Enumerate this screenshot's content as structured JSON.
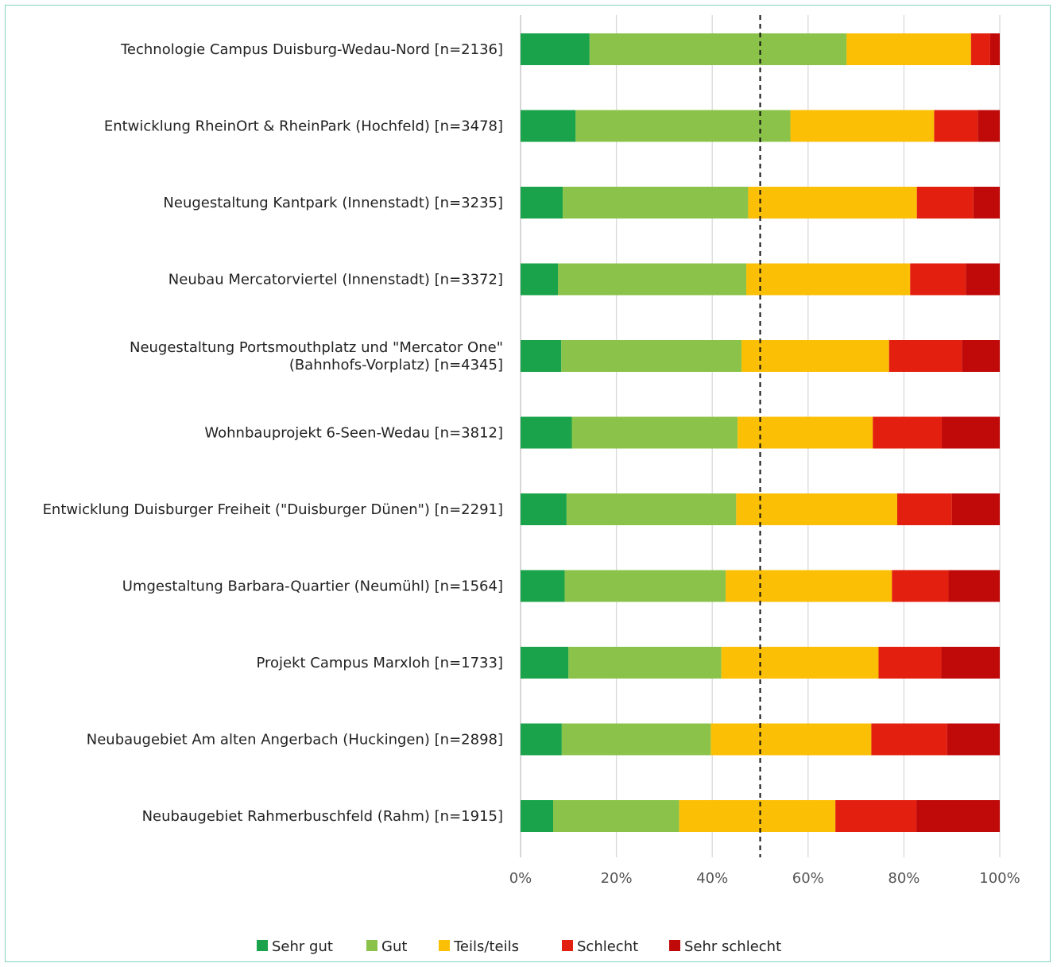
{
  "chart_data": {
    "type": "bar",
    "orientation": "horizontal",
    "stacked": "100%",
    "categories": [
      [
        "Technologie Campus Duisburg-Wedau-Nord [n=2136]"
      ],
      [
        "Entwicklung RheinOrt & RheinPark (Hochfeld) [n=3478]"
      ],
      [
        "Neugestaltung Kantpark (Innenstadt) [n=3235]"
      ],
      [
        "Neubau Mercatorviertel (Innenstadt) [n=3372]"
      ],
      [
        "Neugestaltung Portsmouthplatz und \"Mercator One\"",
        "(Bahnhofs-Vorplatz) [n=4345]"
      ],
      [
        "Wohnbauprojekt 6-Seen-Wedau [n=3812]"
      ],
      [
        "Entwicklung Duisburger Freiheit (\"Duisburger Dünen\") [n=2291]"
      ],
      [
        "Umgestaltung Barbara-Quartier (Neumühl) [n=1564]"
      ],
      [
        "Projekt Campus Marxloh [n=1733]"
      ],
      [
        "Neubaugebiet Am alten Angerbach (Huckingen) [n=2898]"
      ],
      [
        "Neubaugebiet Rahmerbuschfeld (Rahm) [n=1915]"
      ]
    ],
    "series": [
      {
        "name": "Sehr gut",
        "color": "#1aa34a",
        "values": [
          14.4,
          11.5,
          8.8,
          7.8,
          8.5,
          10.7,
          9.6,
          9.2,
          10.0,
          8.6,
          6.8
        ]
      },
      {
        "name": "Gut",
        "color": "#8bc34a",
        "values": [
          53.6,
          44.8,
          38.7,
          39.3,
          37.6,
          34.6,
          35.4,
          33.6,
          31.9,
          31.1,
          26.3
        ]
      },
      {
        "name": "Teils/teils",
        "color": "#fbbf05",
        "values": [
          26.0,
          30.0,
          35.2,
          34.2,
          30.8,
          28.2,
          33.6,
          34.7,
          32.8,
          33.5,
          32.6
        ]
      },
      {
        "name": "Schlecht",
        "color": "#e3200f",
        "values": [
          4.0,
          9.1,
          11.8,
          11.6,
          15.2,
          14.4,
          11.4,
          11.8,
          13.1,
          15.8,
          16.9
        ]
      },
      {
        "name": "Sehr schlecht",
        "color": "#c00a0a",
        "values": [
          2.0,
          4.6,
          5.5,
          7.1,
          7.9,
          12.1,
          10.0,
          10.7,
          12.2,
          11.0,
          17.4
        ]
      }
    ],
    "xlim": [
      0,
      100
    ],
    "xticks": [
      "0%",
      "20%",
      "40%",
      "60%",
      "80%",
      "100%"
    ],
    "reference_line": {
      "value": 50,
      "style": "dashed",
      "color": "#111111"
    },
    "grid": "vertical",
    "legend": "bottom"
  }
}
